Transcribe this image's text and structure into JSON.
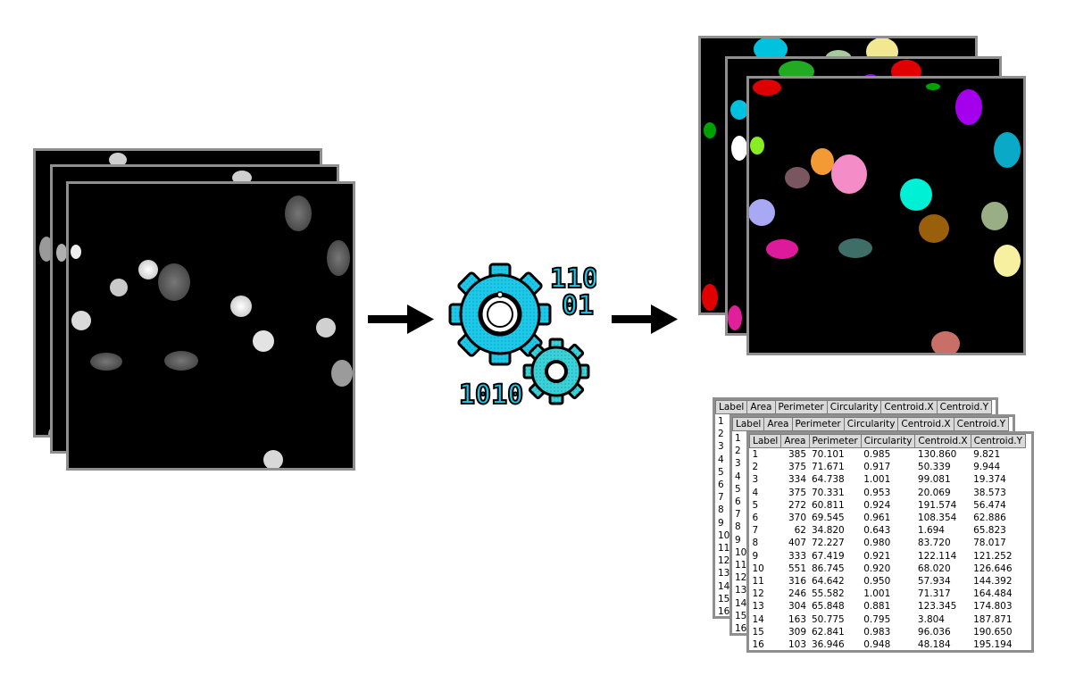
{
  "table": {
    "headers": [
      "Label",
      "Area",
      "Perimeter",
      "Circularity",
      "Centroid.X",
      "Centroid.Y"
    ],
    "rows": [
      [
        "1",
        "385",
        "70.101",
        "0.985",
        "130.860",
        "9.821"
      ],
      [
        "2",
        "375",
        "71.671",
        "0.917",
        "50.339",
        "9.944"
      ],
      [
        "3",
        "334",
        "64.738",
        "1.001",
        "99.081",
        "19.374"
      ],
      [
        "4",
        "375",
        "70.331",
        "0.953",
        "20.069",
        "38.573"
      ],
      [
        "5",
        "272",
        "60.811",
        "0.924",
        "191.574",
        "56.474"
      ],
      [
        "6",
        "370",
        "69.545",
        "0.961",
        "108.354",
        "62.886"
      ],
      [
        "7",
        "62",
        "34.820",
        "0.643",
        "1.694",
        "65.823"
      ],
      [
        "8",
        "407",
        "72.227",
        "0.980",
        "83.720",
        "78.017"
      ],
      [
        "9",
        "333",
        "67.419",
        "0.921",
        "122.114",
        "121.252"
      ],
      [
        "10",
        "551",
        "86.745",
        "0.920",
        "68.020",
        "126.646"
      ],
      [
        "11",
        "316",
        "64.642",
        "0.950",
        "57.934",
        "144.392"
      ],
      [
        "12",
        "246",
        "55.582",
        "1.001",
        "71.317",
        "164.484"
      ],
      [
        "13",
        "304",
        "65.848",
        "0.881",
        "123.345",
        "174.803"
      ],
      [
        "14",
        "163",
        "50.775",
        "0.795",
        "3.804",
        "187.871"
      ],
      [
        "15",
        "309",
        "62.841",
        "0.983",
        "96.036",
        "190.650"
      ],
      [
        "16",
        "103",
        "36.946",
        "0.948",
        "48.184",
        "195.194"
      ]
    ],
    "row_labels": [
      "1",
      "2",
      "3",
      "4",
      "5",
      "6",
      "7",
      "8",
      "9",
      "10",
      "11",
      "12",
      "13",
      "14",
      "15",
      "16"
    ]
  },
  "gear_icon": {
    "binary_top": "110",
    "binary_mid": "01",
    "binary_bottom": "1010"
  },
  "colors": {
    "panel_border": "#8f8f8f",
    "gear_fill": "#1ec8e8",
    "gear_small_fill": "#3ad1d8",
    "arrow": "#000000"
  }
}
